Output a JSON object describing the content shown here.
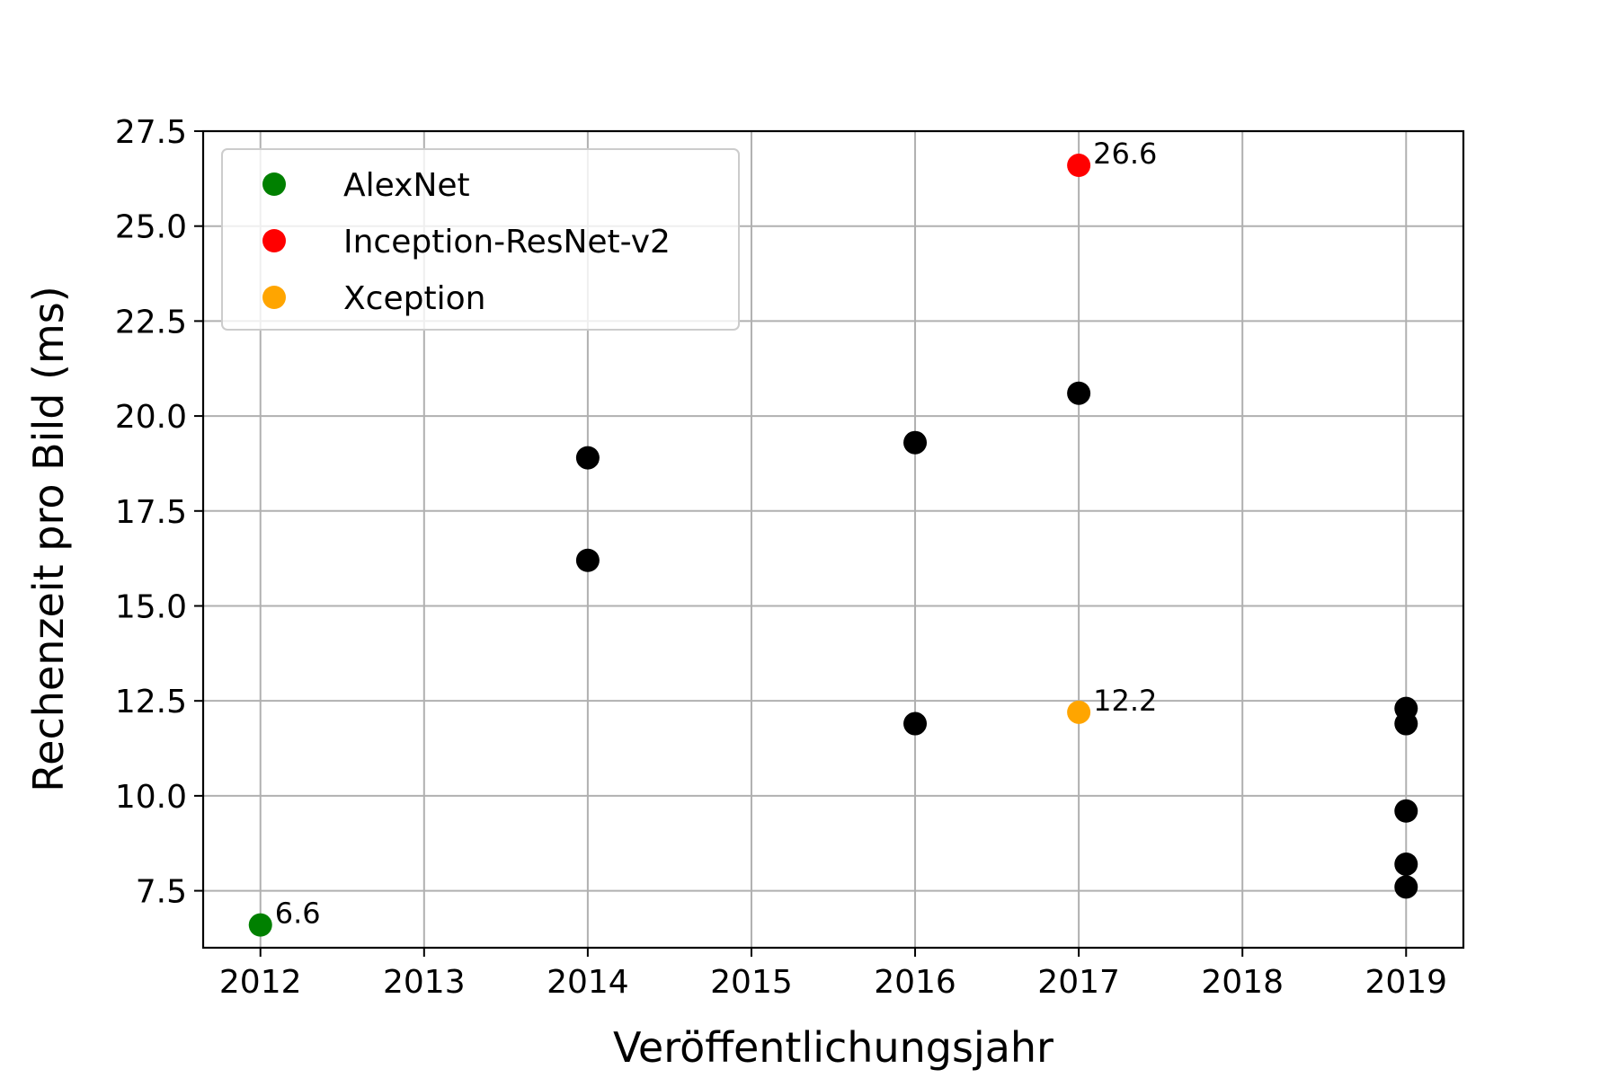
{
  "chart_data": {
    "type": "scatter",
    "title": "",
    "xlabel": "Veröffentlichungsjahr",
    "ylabel": "Rechenzeit pro Bild (ms)",
    "xlim": [
      2011.65,
      2019.35
    ],
    "ylim": [
      6.0,
      27.5
    ],
    "x_ticks": [
      2012,
      2013,
      2014,
      2015,
      2016,
      2017,
      2018,
      2019
    ],
    "x_tick_labels": [
      "2012",
      "2013",
      "2014",
      "2015",
      "2016",
      "2017",
      "2018",
      "2019"
    ],
    "y_ticks": [
      7.5,
      10.0,
      12.5,
      15.0,
      17.5,
      20.0,
      22.5,
      25.0,
      27.5
    ],
    "y_tick_labels": [
      "7.5",
      "10.0",
      "12.5",
      "15.0",
      "17.5",
      "20.0",
      "22.5",
      "25.0",
      "27.5"
    ],
    "grid": true,
    "legend_position": "top-left",
    "series": [
      {
        "name": "AlexNet",
        "color": "#008000",
        "points": [
          {
            "x": 2012,
            "y": 6.6,
            "label": "6.6"
          }
        ]
      },
      {
        "name": "Inception-ResNet-v2",
        "color": "#ff0000",
        "points": [
          {
            "x": 2017,
            "y": 26.6,
            "label": "26.6"
          }
        ]
      },
      {
        "name": "Xception",
        "color": "#ffa500",
        "points": [
          {
            "x": 2017,
            "y": 12.2,
            "label": "12.2"
          }
        ]
      }
    ],
    "other_points": {
      "color": "#000000",
      "points": [
        {
          "x": 2014,
          "y": 18.9
        },
        {
          "x": 2014,
          "y": 16.2
        },
        {
          "x": 2016,
          "y": 19.3
        },
        {
          "x": 2016,
          "y": 11.9
        },
        {
          "x": 2017,
          "y": 20.6
        },
        {
          "x": 2019,
          "y": 12.3
        },
        {
          "x": 2019,
          "y": 11.9
        },
        {
          "x": 2019,
          "y": 9.6
        },
        {
          "x": 2019,
          "y": 8.2
        },
        {
          "x": 2019,
          "y": 7.6
        }
      ]
    }
  }
}
